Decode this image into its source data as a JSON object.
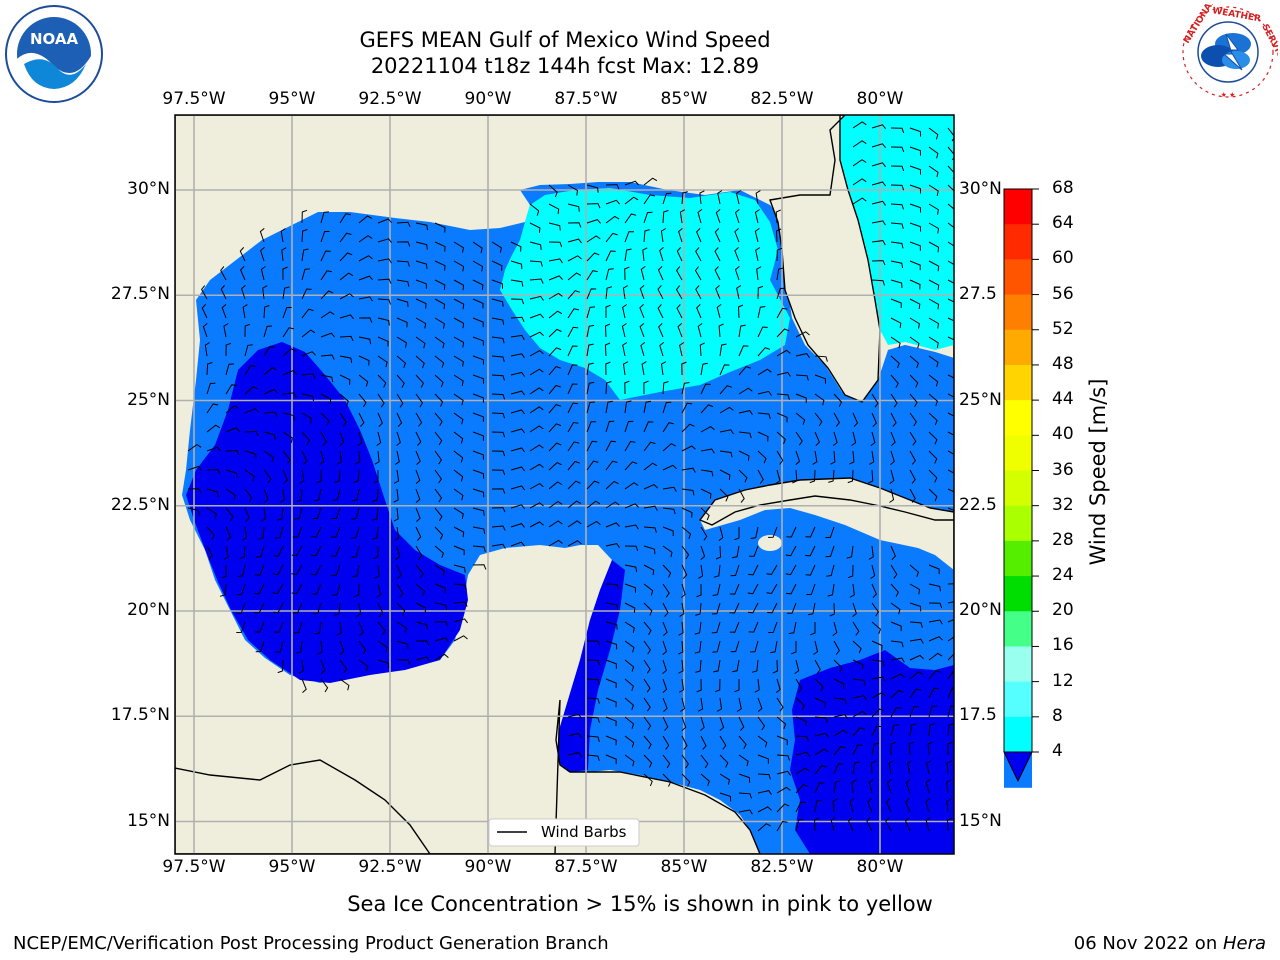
{
  "header": {
    "title_line1": "GEFS MEAN Gulf of Mexico Wind Speed",
    "title_line2": "20221104 t18z 144h fcst   Max: 12.89"
  },
  "logos": {
    "left": {
      "name": "NOAA",
      "ring_text": "NATIONAL OCEANIC AND ATMOSPHERIC ADMINISTRATION · U.S. DEPARTMENT OF COMMERCE"
    },
    "right": {
      "name": "NATIONAL WEATHER SERVICE"
    }
  },
  "map": {
    "lon_ticks": [
      "97.5°W",
      "95°W",
      "92.5°W",
      "90°W",
      "87.5°W",
      "85°W",
      "82.5°W",
      "80°W"
    ],
    "lat_ticks_left": [
      "30°N",
      "27.5°N",
      "25°N",
      "22.5°N",
      "20°N",
      "17.5°N",
      "15°N"
    ],
    "lat_ticks_right": [
      "30°N",
      "27.5",
      "25°N",
      "22.5",
      "20°N",
      "17.5",
      "15°N"
    ],
    "legend_label": "Wind Barbs",
    "colors": {
      "land": "#efeedc",
      "ws_4_8": "#0a7bff",
      "ws_0_4": "#0000f0",
      "ws_8_12": "#00ffff"
    }
  },
  "colorbar": {
    "label": "Wind Speed [m/s]",
    "ticks": [
      "68",
      "64",
      "60",
      "56",
      "52",
      "48",
      "44",
      "40",
      "36",
      "32",
      "28",
      "24",
      "20",
      "16",
      "12",
      "8",
      "4"
    ],
    "colors": [
      "#ff0000",
      "#ff2a00",
      "#ff5500",
      "#ff8000",
      "#ffaa00",
      "#ffd400",
      "#ffff00",
      "#f0ff00",
      "#d4ff00",
      "#aaff00",
      "#55ee00",
      "#00dd00",
      "#44ff88",
      "#99ffee",
      "#55ffff",
      "#00ffff",
      "#0a7bff"
    ],
    "underflow_color": "#0000f0"
  },
  "footer": {
    "note": "Sea Ice Concentration > 15% is shown in pink to yellow",
    "left": "NCEP/EMC/Verification Post Processing Product Generation Branch",
    "date": "06 Nov 2022 on ",
    "host": "Hera"
  }
}
